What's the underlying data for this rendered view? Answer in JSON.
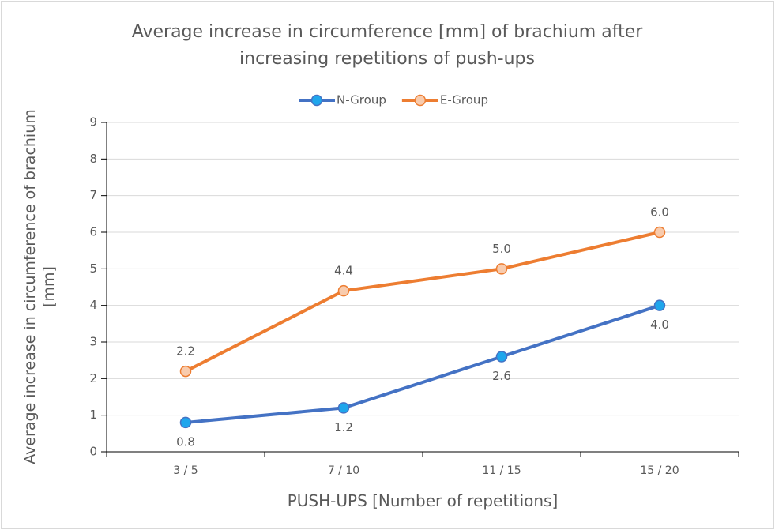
{
  "chart_data": {
    "type": "line",
    "title": "Average increase in circumference [mm] of brachium after increasing repetitions of push-ups",
    "xlabel": "PUSH-UPS [Number of repetitions]",
    "ylabel": "Average increase in circumference of brachium [mm]",
    "categories": [
      "3 / 5",
      "7 / 10",
      "11 / 15",
      "15 / 20"
    ],
    "series": [
      {
        "name": "N-Group",
        "color": "#4472c4",
        "marker_color": "#1fa6ec",
        "values": [
          0.8,
          1.2,
          2.6,
          4.0
        ],
        "value_labels": [
          "0.8",
          "1.2",
          "2.6",
          "4.0"
        ],
        "label_position": "below"
      },
      {
        "name": "E-Group",
        "color": "#ed7d31",
        "marker_color": "#f8cbad",
        "values": [
          2.2,
          4.4,
          5.0,
          6.0
        ],
        "value_labels": [
          "2.2",
          "4.4",
          "5.0",
          "6.0"
        ],
        "label_position": "above"
      }
    ],
    "ylim": [
      0,
      9
    ],
    "yticks": [
      0,
      1,
      2,
      3,
      4,
      5,
      6,
      7,
      8,
      9
    ],
    "grid": true,
    "legend": "top"
  }
}
